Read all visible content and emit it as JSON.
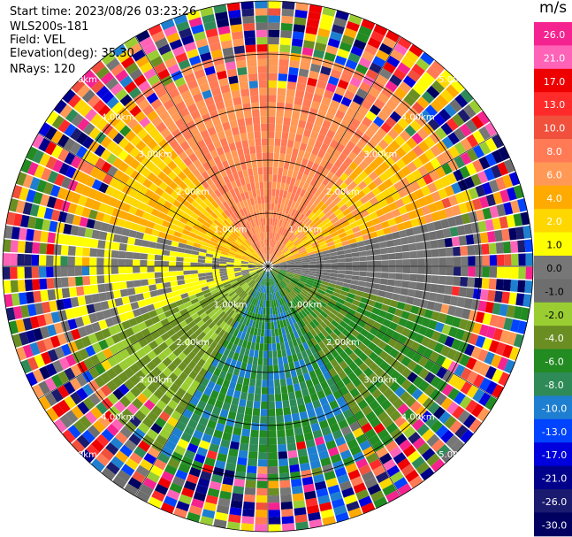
{
  "header": {
    "start_time": "Start time: 2023/08/26 03:23:26",
    "instrument": "WLS200s-181",
    "field": "Field: VEL",
    "elevation": "Elevation(deg): 35.30",
    "nrays": "NRays: 120"
  },
  "colorbar": {
    "unit": "m/s",
    "ticks": [
      "26.0",
      "21.0",
      "17.0",
      "13.0",
      "10.0",
      "8.0",
      "6.0",
      "4.0",
      "2.0",
      "1.0",
      "0.0",
      "-1.0",
      "-2.0",
      "-4.0",
      "-6.0",
      "-8.0",
      "-10.0",
      "-13.0",
      "-17.0",
      "-21.0",
      "-26.0",
      "-30.0"
    ],
    "colors": [
      "#f5238f",
      "#ff63b8",
      "#ee0000",
      "#ff2a2a",
      "#f0503c",
      "#ff7a55",
      "#ff9955",
      "#ffaa00",
      "#ffd700",
      "#ffff00",
      "#777777",
      "#6e6e6e",
      "#9acd32",
      "#6b8e23",
      "#228b22",
      "#2e8b57",
      "#1e7fd0",
      "#0044ff",
      "#0000dd",
      "#00008b",
      "#1a1a6e",
      "#000060"
    ]
  },
  "chart_data": {
    "type": "ppi",
    "field": "VEL",
    "units": "m/s",
    "nrays": 120,
    "range_rings_km": [
      1.0,
      2.0,
      3.0,
      4.0,
      5.0
    ],
    "range_labels": [
      "1.00km",
      "2.00km",
      "3.00km",
      "4.00km",
      "5.00km"
    ],
    "color_levels": [
      26.0,
      21.0,
      17.0,
      13.0,
      10.0,
      8.0,
      6.0,
      4.0,
      2.0,
      1.0,
      0.0,
      -1.0,
      -2.0,
      -4.0,
      -6.0,
      -8.0,
      -10.0,
      -13.0,
      -17.0,
      -21.0,
      -26.0,
      -30.0
    ],
    "max_range_km": 5.0,
    "sector_ranges": [
      {
        "from_deg": 320,
        "to_deg": 40,
        "min": 6,
        "max": 10
      },
      {
        "from_deg": 40,
        "to_deg": 75,
        "min": 2,
        "max": 8
      },
      {
        "from_deg": 75,
        "to_deg": 105,
        "min": -1,
        "max": 1
      },
      {
        "from_deg": 105,
        "to_deg": 150,
        "min": -6,
        "max": -2
      },
      {
        "from_deg": 150,
        "to_deg": 210,
        "min": -10,
        "max": -4
      },
      {
        "from_deg": 210,
        "to_deg": 250,
        "min": -4,
        "max": -1
      },
      {
        "from_deg": 250,
        "to_deg": 285,
        "min": 0,
        "max": 2
      },
      {
        "from_deg": 285,
        "to_deg": 320,
        "min": 2,
        "max": 6
      }
    ],
    "noise_beyond_km": 4.0
  }
}
